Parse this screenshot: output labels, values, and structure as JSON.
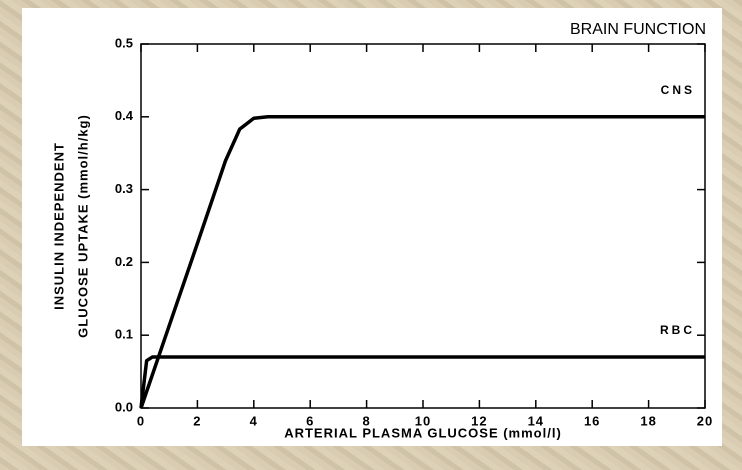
{
  "chart_data": {
    "type": "line",
    "title": "BRAIN FUNCTION",
    "x_label": "ARTERIAL PLASMA GLUCOSE (mmol/l)",
    "y_label": [
      "INSULIN INDEPENDENT",
      "GLUCOSE UPTAKE (mmol/h/kg)"
    ],
    "xlim": [
      0,
      20
    ],
    "ylim": [
      0,
      0.5
    ],
    "xticks": [
      0,
      2,
      4,
      6,
      8,
      10,
      12,
      14,
      16,
      18,
      20
    ],
    "yticks": [
      {
        "value": 0,
        "label": "0.0"
      },
      0.1,
      0.2,
      0.3,
      0.4,
      0.5
    ],
    "grid": false,
    "series": [
      {
        "name": "CNS",
        "color": "#000000",
        "x": [
          0,
          1,
          2,
          3,
          3.5,
          4,
          4.5,
          20
        ],
        "values": [
          0,
          0.113,
          0.226,
          0.34,
          0.383,
          0.398,
          0.4,
          0.4
        ]
      },
      {
        "name": "RBC",
        "color": "#000000",
        "x": [
          0,
          0.2,
          0.4,
          20
        ],
        "values": [
          0,
          0.065,
          0.07,
          0.07
        ]
      }
    ]
  }
}
